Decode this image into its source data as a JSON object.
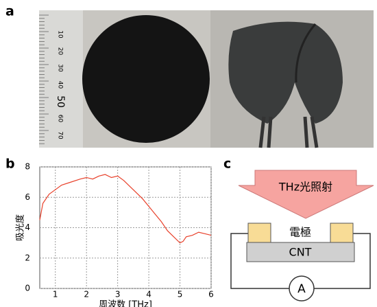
{
  "panels": {
    "a": "a",
    "b": "b",
    "c": "c"
  },
  "photo": {
    "ruler_labels": [
      "10",
      "20",
      "30",
      "40",
      "50",
      "60",
      "70"
    ]
  },
  "chart_data": {
    "type": "line",
    "xlabel": "周波数 [THz]",
    "ylabel": "吸光度",
    "x": [
      0.5,
      0.6,
      0.8,
      1.0,
      1.2,
      1.5,
      1.8,
      2.0,
      2.2,
      2.4,
      2.6,
      2.8,
      3.0,
      3.2,
      3.4,
      3.6,
      3.8,
      4.0,
      4.2,
      4.4,
      4.6,
      4.8,
      5.0,
      5.1,
      5.2,
      5.4,
      5.6,
      5.8,
      6.0
    ],
    "values": [
      4.5,
      5.6,
      6.2,
      6.5,
      6.8,
      7.0,
      7.2,
      7.3,
      7.2,
      7.4,
      7.5,
      7.3,
      7.4,
      7.1,
      6.7,
      6.3,
      5.9,
      5.4,
      4.9,
      4.4,
      3.8,
      3.4,
      3.0,
      3.1,
      3.4,
      3.5,
      3.7,
      3.6,
      3.5
    ],
    "color": "#e8402a",
    "xlim": [
      0.5,
      6
    ],
    "ylim": [
      0,
      8
    ],
    "xticks": [
      1,
      2,
      3,
      4,
      5,
      6
    ],
    "yticks": [
      0,
      2,
      4,
      6,
      8
    ],
    "grid": true
  },
  "diagram": {
    "arrow": "THz光照射",
    "electrode": "電極",
    "substrate": "CNT",
    "meter": "A"
  }
}
